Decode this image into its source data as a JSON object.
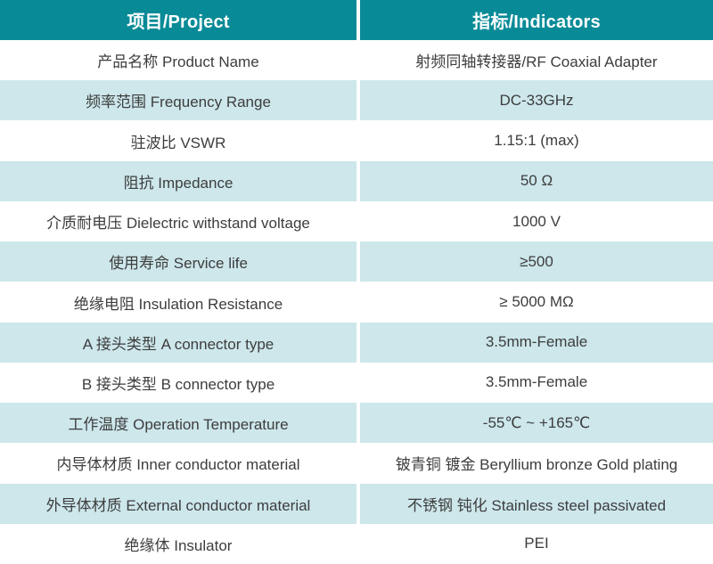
{
  "colors": {
    "header_bg": "#098b97",
    "row_alt_bg": "#cde7eb",
    "row_bg": "#ffffff",
    "body_text": "#3d3d3d",
    "header_text": "#ffffff",
    "divider": "#ffffff"
  },
  "table": {
    "headers": {
      "project": "项目/Project",
      "indicators": "指标/Indicators"
    },
    "rows": [
      {
        "project": "产品名称 Product Name",
        "indicator": "射频同轴转接器/RF Coaxial Adapter"
      },
      {
        "project": "频率范围 Frequency Range",
        "indicator": "DC-33GHz"
      },
      {
        "project": "驻波比 VSWR",
        "indicator": "1.15:1 (max)"
      },
      {
        "project": "阻抗 Impedance",
        "indicator": "50 Ω"
      },
      {
        "project": "介质耐电压 Dielectric withstand voltage",
        "indicator": "1000 V"
      },
      {
        "project": "使用寿命 Service life",
        "indicator": "≥500"
      },
      {
        "project": "绝缘电阻 Insulation Resistance",
        "indicator": "≥ 5000 MΩ"
      },
      {
        "project": "A 接头类型  A connector type",
        "indicator": "3.5mm-Female"
      },
      {
        "project": "B 接头类型  B connector type",
        "indicator": "3.5mm-Female"
      },
      {
        "project": "工作温度 Operation Temperature",
        "indicator": "-55℃ ~ +165℃"
      },
      {
        "project": "内导体材质 Inner conductor material",
        "indicator": "铍青铜 镀金 Beryllium bronze Gold plating"
      },
      {
        "project": "外导体材质 External conductor material",
        "indicator": "不锈钢 钝化 Stainless steel passivated"
      },
      {
        "project": "绝缘体 Insulator",
        "indicator": "PEI"
      }
    ]
  }
}
